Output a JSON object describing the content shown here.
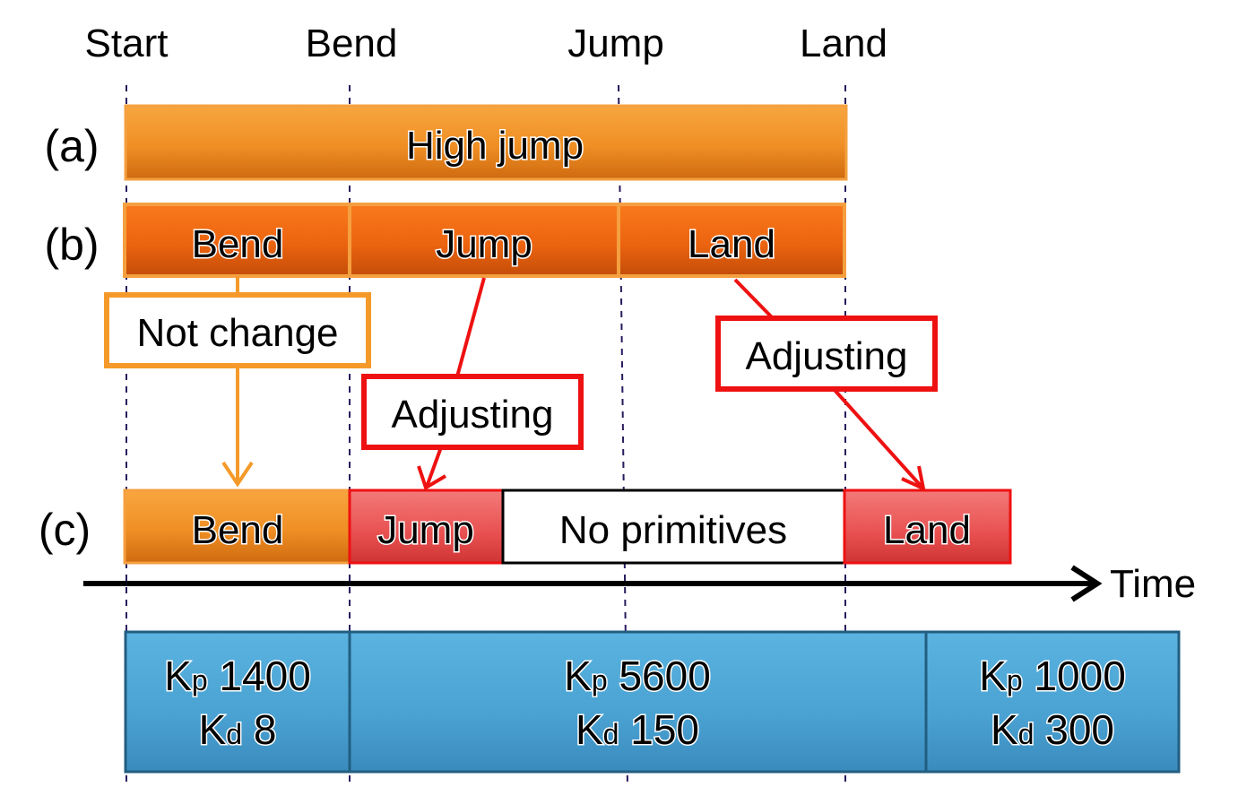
{
  "phases": [
    "Start",
    "Bend",
    "Jump",
    "Land"
  ],
  "rows": {
    "a": {
      "label": "(a)",
      "bar": "High jump"
    },
    "b": {
      "label": "(b)",
      "segments": [
        "Bend",
        "Jump",
        "Land"
      ]
    },
    "c": {
      "label": "(c)",
      "segments": [
        "Bend",
        "Jump",
        "No primitives",
        "Land"
      ]
    }
  },
  "connectors": {
    "not_change": "Not change",
    "adjusting_jump": "Adjusting",
    "adjusting_land": "Adjusting"
  },
  "time_axis": {
    "label": "Time"
  },
  "gains": [
    {
      "kp_symbol": "K",
      "kp_sub": "p",
      "kp_value": "1400",
      "kd_symbol": "K",
      "kd_sub": "d",
      "kd_value": "8"
    },
    {
      "kp_symbol": "K",
      "kp_sub": "p",
      "kp_value": "5600",
      "kd_symbol": "K",
      "kd_sub": "d",
      "kd_value": "150"
    },
    {
      "kp_symbol": "K",
      "kp_sub": "p",
      "kp_value": "1000",
      "kd_symbol": "K",
      "kd_sub": "d",
      "kd_value": "300"
    }
  ],
  "colors": {
    "orange_top": "#f7a23a",
    "orange_bottom": "#d96e10",
    "deep_orange_top": "#f7741a",
    "deep_orange_bottom": "#c84a08",
    "red_top": "#f26f6f",
    "red_bottom": "#d63a3a",
    "red_line": "#ee1111",
    "orange_line": "#f59a2a",
    "blue_top": "#56addb",
    "blue_bottom": "#3a8fc2",
    "blue_border": "#225e80",
    "dash": "#2a1a5e"
  }
}
